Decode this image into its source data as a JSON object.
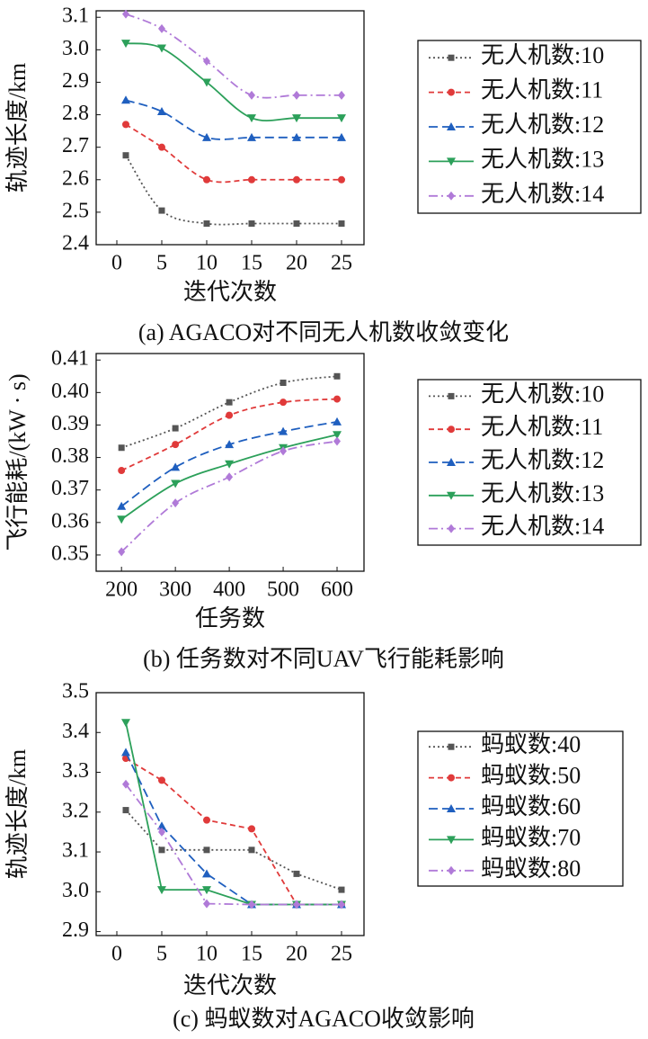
{
  "chart_data": [
    {
      "type": "line",
      "caption": "(a) AGACO对不同无人机数收敛变化",
      "xlabel": "迭代次数",
      "ylabel": "轨迹长度/km",
      "smooth": true,
      "x": [
        1,
        5,
        10,
        15,
        20,
        25
      ],
      "xlim": [
        -2.3,
        27.5
      ],
      "xticks": [
        0,
        5,
        10,
        15,
        20,
        25
      ],
      "ylim": [
        2.4,
        3.12
      ],
      "yticks": [
        2.4,
        2.5,
        2.6,
        2.7,
        2.8,
        2.9,
        {
          "value": 3,
          "label": "3.0"
        },
        3.1
      ],
      "series": [
        {
          "name": "无人机数:10",
          "color": "#555555",
          "marker": "square",
          "linestyle": "dotted",
          "values": [
            2.675,
            2.505,
            2.465,
            2.465,
            2.465,
            2.465
          ]
        },
        {
          "name": "无人机数:11",
          "color": "#e03a3a",
          "marker": "circle",
          "linestyle": "dashed",
          "values": [
            2.77,
            2.7,
            2.6,
            2.6,
            2.6,
            2.6
          ]
        },
        {
          "name": "无人机数:12",
          "color": "#1f5fbf",
          "marker": "triangle-up",
          "linestyle": "longdash",
          "values": [
            2.845,
            2.81,
            2.73,
            2.73,
            2.73,
            2.73
          ]
        },
        {
          "name": "无人机数:13",
          "color": "#2ca05a",
          "marker": "triangle-down",
          "linestyle": "solid",
          "values": [
            3.02,
            3.005,
            2.9,
            2.79,
            2.79,
            2.79
          ]
        },
        {
          "name": "无人机数:14",
          "color": "#b07ad8",
          "marker": "diamond",
          "linestyle": "dashdot",
          "values": [
            3.11,
            3.065,
            2.965,
            2.86,
            2.86,
            2.86
          ]
        }
      ]
    },
    {
      "type": "line",
      "caption": "(b) 任务数对不同UAV飞行能耗影响",
      "xlabel": "任务数",
      "ylabel": "飞行能耗/(kW · s)",
      "smooth": true,
      "x": [
        200,
        300,
        400,
        500,
        600
      ],
      "xlim": [
        153,
        650
      ],
      "xticks": [
        200,
        300,
        400,
        500,
        600
      ],
      "ylim": [
        0.345,
        0.412
      ],
      "yticks": [
        0.35,
        0.36,
        0.37,
        0.38,
        0.39,
        {
          "value": 0.4,
          "label": "0.40"
        },
        0.41
      ],
      "series": [
        {
          "name": "无人机数:10",
          "color": "#555555",
          "marker": "square",
          "linestyle": "dotted",
          "values": [
            0.383,
            0.389,
            0.397,
            0.403,
            0.405
          ]
        },
        {
          "name": "无人机数:11",
          "color": "#e03a3a",
          "marker": "circle",
          "linestyle": "dashed",
          "values": [
            0.376,
            0.384,
            0.393,
            0.397,
            0.398
          ]
        },
        {
          "name": "无人机数:12",
          "color": "#1f5fbf",
          "marker": "triangle-up",
          "linestyle": "longdash",
          "values": [
            0.365,
            0.377,
            0.384,
            0.388,
            0.391
          ]
        },
        {
          "name": "无人机数:13",
          "color": "#2ca05a",
          "marker": "triangle-down",
          "linestyle": "solid",
          "values": [
            0.361,
            0.372,
            0.378,
            0.383,
            0.387
          ]
        },
        {
          "name": "无人机数:14",
          "color": "#b07ad8",
          "marker": "diamond",
          "linestyle": "dashdot",
          "values": [
            0.351,
            0.366,
            0.374,
            0.382,
            0.385
          ]
        }
      ]
    },
    {
      "type": "line",
      "caption": "(c) 蚂蚁数对AGACO收敛影响",
      "xlabel": "迭代次数",
      "ylabel": "轨迹长度/km",
      "smooth": false,
      "x": [
        1,
        5,
        10,
        15,
        20,
        25
      ],
      "xlim": [
        -2.3,
        27.5
      ],
      "xticks": [
        0,
        5,
        10,
        15,
        20,
        25
      ],
      "ylim": [
        2.89,
        3.5
      ],
      "yticks": [
        2.9,
        {
          "value": 3,
          "label": "3.0"
        },
        3.1,
        3.2,
        3.3,
        3.4,
        3.5
      ],
      "series": [
        {
          "name": "蚂蚁数:40",
          "color": "#555555",
          "marker": "square",
          "linestyle": "dotted",
          "values": [
            3.205,
            3.105,
            3.105,
            3.105,
            3.045,
            3.005
          ]
        },
        {
          "name": "蚂蚁数:50",
          "color": "#e03a3a",
          "marker": "circle",
          "linestyle": "dashed",
          "values": [
            3.335,
            3.28,
            3.18,
            3.158,
            2.968,
            2.968
          ]
        },
        {
          "name": "蚂蚁数:60",
          "color": "#1f5fbf",
          "marker": "triangle-up",
          "linestyle": "longdash",
          "values": [
            3.35,
            3.165,
            3.045,
            2.968,
            2.968,
            2.968
          ]
        },
        {
          "name": "蚂蚁数:70",
          "color": "#2ca05a",
          "marker": "triangle-down",
          "linestyle": "solid",
          "values": [
            3.425,
            3.005,
            3.005,
            2.968,
            2.968,
            2.968
          ]
        },
        {
          "name": "蚂蚁数:80",
          "color": "#b07ad8",
          "marker": "diamond",
          "linestyle": "dashdot",
          "values": [
            3.27,
            3.15,
            2.97,
            2.968,
            2.968,
            2.968
          ]
        }
      ]
    }
  ]
}
